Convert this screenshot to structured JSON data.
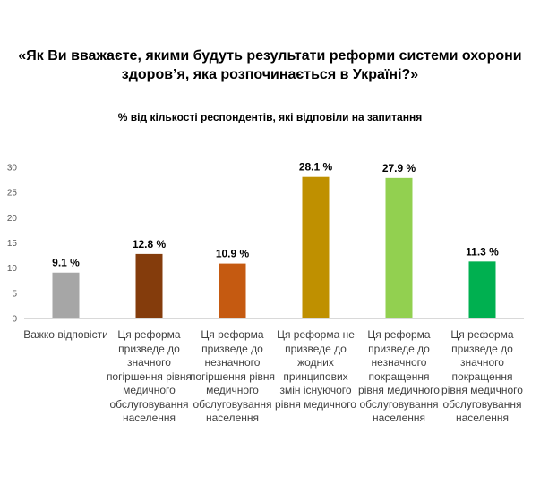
{
  "chart_data": {
    "type": "bar",
    "title": "«Як Ви вважаєте, якими будуть результати реформи системи охорони здоров’я, яка розпочинається в Україні?»",
    "subtitle": "% від кількості респондентів, які відповіли на запитання",
    "categories": [
      "Важко відповісти",
      "Ця реформа призведе до значного погіршення рівня медичного обслуговування населення",
      "Ця реформа призведе до незначного погіршення рівня медичного обслуговування населення",
      "Ця реформа не призведе до жодних принципових змін існуючого рівня медичного",
      "Ця реформа призведе до незначного покращення рівня медичного обслуговування населення",
      "Ця реформа призведе до значного покращення рівня медичного обслуговування населення"
    ],
    "values": [
      9.1,
      12.8,
      10.9,
      28.1,
      27.9,
      11.3
    ],
    "data_labels": [
      "9.1 %",
      "12.8 %",
      "10.9 %",
      "28.1 %",
      "27.9 %",
      "11.3 %"
    ],
    "colors": [
      "#a6a6a6",
      "#843c0c",
      "#c55a11",
      "#bf9000",
      "#92d050",
      "#00b050"
    ],
    "yticks": [
      "0",
      "5",
      "10",
      "15",
      "20",
      "25",
      "30"
    ],
    "ylim": [
      0,
      30
    ],
    "grid": false,
    "legend": "none"
  }
}
